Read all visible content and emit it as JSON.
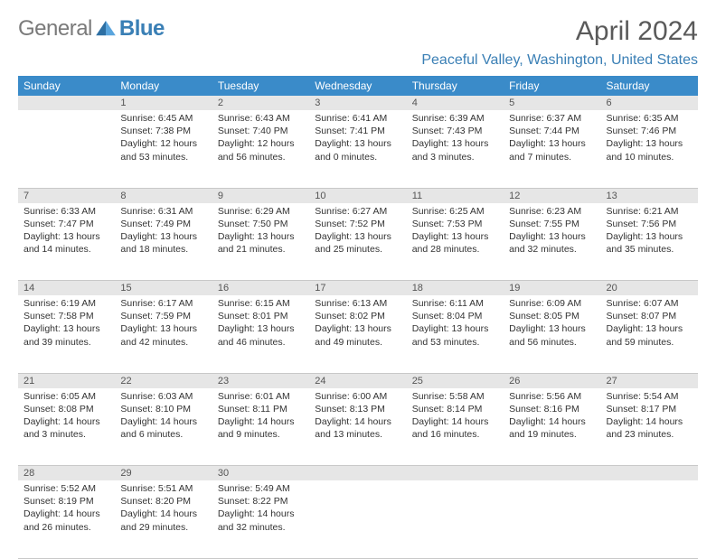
{
  "brand": {
    "text1": "General",
    "text2": "Blue"
  },
  "title": "April 2024",
  "location": "Peaceful Valley, Washington, United States",
  "header_bg": "#3a8bc9",
  "daynum_bg": "#e6e6e6",
  "accent_color": "#3a7fb5",
  "days": [
    "Sunday",
    "Monday",
    "Tuesday",
    "Wednesday",
    "Thursday",
    "Friday",
    "Saturday"
  ],
  "weeks": [
    [
      {
        "n": "",
        "sr": "",
        "ss": "",
        "d1": "",
        "d2": ""
      },
      {
        "n": "1",
        "sr": "Sunrise: 6:45 AM",
        "ss": "Sunset: 7:38 PM",
        "d1": "Daylight: 12 hours",
        "d2": "and 53 minutes."
      },
      {
        "n": "2",
        "sr": "Sunrise: 6:43 AM",
        "ss": "Sunset: 7:40 PM",
        "d1": "Daylight: 12 hours",
        "d2": "and 56 minutes."
      },
      {
        "n": "3",
        "sr": "Sunrise: 6:41 AM",
        "ss": "Sunset: 7:41 PM",
        "d1": "Daylight: 13 hours",
        "d2": "and 0 minutes."
      },
      {
        "n": "4",
        "sr": "Sunrise: 6:39 AM",
        "ss": "Sunset: 7:43 PM",
        "d1": "Daylight: 13 hours",
        "d2": "and 3 minutes."
      },
      {
        "n": "5",
        "sr": "Sunrise: 6:37 AM",
        "ss": "Sunset: 7:44 PM",
        "d1": "Daylight: 13 hours",
        "d2": "and 7 minutes."
      },
      {
        "n": "6",
        "sr": "Sunrise: 6:35 AM",
        "ss": "Sunset: 7:46 PM",
        "d1": "Daylight: 13 hours",
        "d2": "and 10 minutes."
      }
    ],
    [
      {
        "n": "7",
        "sr": "Sunrise: 6:33 AM",
        "ss": "Sunset: 7:47 PM",
        "d1": "Daylight: 13 hours",
        "d2": "and 14 minutes."
      },
      {
        "n": "8",
        "sr": "Sunrise: 6:31 AM",
        "ss": "Sunset: 7:49 PM",
        "d1": "Daylight: 13 hours",
        "d2": "and 18 minutes."
      },
      {
        "n": "9",
        "sr": "Sunrise: 6:29 AM",
        "ss": "Sunset: 7:50 PM",
        "d1": "Daylight: 13 hours",
        "d2": "and 21 minutes."
      },
      {
        "n": "10",
        "sr": "Sunrise: 6:27 AM",
        "ss": "Sunset: 7:52 PM",
        "d1": "Daylight: 13 hours",
        "d2": "and 25 minutes."
      },
      {
        "n": "11",
        "sr": "Sunrise: 6:25 AM",
        "ss": "Sunset: 7:53 PM",
        "d1": "Daylight: 13 hours",
        "d2": "and 28 minutes."
      },
      {
        "n": "12",
        "sr": "Sunrise: 6:23 AM",
        "ss": "Sunset: 7:55 PM",
        "d1": "Daylight: 13 hours",
        "d2": "and 32 minutes."
      },
      {
        "n": "13",
        "sr": "Sunrise: 6:21 AM",
        "ss": "Sunset: 7:56 PM",
        "d1": "Daylight: 13 hours",
        "d2": "and 35 minutes."
      }
    ],
    [
      {
        "n": "14",
        "sr": "Sunrise: 6:19 AM",
        "ss": "Sunset: 7:58 PM",
        "d1": "Daylight: 13 hours",
        "d2": "and 39 minutes."
      },
      {
        "n": "15",
        "sr": "Sunrise: 6:17 AM",
        "ss": "Sunset: 7:59 PM",
        "d1": "Daylight: 13 hours",
        "d2": "and 42 minutes."
      },
      {
        "n": "16",
        "sr": "Sunrise: 6:15 AM",
        "ss": "Sunset: 8:01 PM",
        "d1": "Daylight: 13 hours",
        "d2": "and 46 minutes."
      },
      {
        "n": "17",
        "sr": "Sunrise: 6:13 AM",
        "ss": "Sunset: 8:02 PM",
        "d1": "Daylight: 13 hours",
        "d2": "and 49 minutes."
      },
      {
        "n": "18",
        "sr": "Sunrise: 6:11 AM",
        "ss": "Sunset: 8:04 PM",
        "d1": "Daylight: 13 hours",
        "d2": "and 53 minutes."
      },
      {
        "n": "19",
        "sr": "Sunrise: 6:09 AM",
        "ss": "Sunset: 8:05 PM",
        "d1": "Daylight: 13 hours",
        "d2": "and 56 minutes."
      },
      {
        "n": "20",
        "sr": "Sunrise: 6:07 AM",
        "ss": "Sunset: 8:07 PM",
        "d1": "Daylight: 13 hours",
        "d2": "and 59 minutes."
      }
    ],
    [
      {
        "n": "21",
        "sr": "Sunrise: 6:05 AM",
        "ss": "Sunset: 8:08 PM",
        "d1": "Daylight: 14 hours",
        "d2": "and 3 minutes."
      },
      {
        "n": "22",
        "sr": "Sunrise: 6:03 AM",
        "ss": "Sunset: 8:10 PM",
        "d1": "Daylight: 14 hours",
        "d2": "and 6 minutes."
      },
      {
        "n": "23",
        "sr": "Sunrise: 6:01 AM",
        "ss": "Sunset: 8:11 PM",
        "d1": "Daylight: 14 hours",
        "d2": "and 9 minutes."
      },
      {
        "n": "24",
        "sr": "Sunrise: 6:00 AM",
        "ss": "Sunset: 8:13 PM",
        "d1": "Daylight: 14 hours",
        "d2": "and 13 minutes."
      },
      {
        "n": "25",
        "sr": "Sunrise: 5:58 AM",
        "ss": "Sunset: 8:14 PM",
        "d1": "Daylight: 14 hours",
        "d2": "and 16 minutes."
      },
      {
        "n": "26",
        "sr": "Sunrise: 5:56 AM",
        "ss": "Sunset: 8:16 PM",
        "d1": "Daylight: 14 hours",
        "d2": "and 19 minutes."
      },
      {
        "n": "27",
        "sr": "Sunrise: 5:54 AM",
        "ss": "Sunset: 8:17 PM",
        "d1": "Daylight: 14 hours",
        "d2": "and 23 minutes."
      }
    ],
    [
      {
        "n": "28",
        "sr": "Sunrise: 5:52 AM",
        "ss": "Sunset: 8:19 PM",
        "d1": "Daylight: 14 hours",
        "d2": "and 26 minutes."
      },
      {
        "n": "29",
        "sr": "Sunrise: 5:51 AM",
        "ss": "Sunset: 8:20 PM",
        "d1": "Daylight: 14 hours",
        "d2": "and 29 minutes."
      },
      {
        "n": "30",
        "sr": "Sunrise: 5:49 AM",
        "ss": "Sunset: 8:22 PM",
        "d1": "Daylight: 14 hours",
        "d2": "and 32 minutes."
      },
      {
        "n": "",
        "sr": "",
        "ss": "",
        "d1": "",
        "d2": ""
      },
      {
        "n": "",
        "sr": "",
        "ss": "",
        "d1": "",
        "d2": ""
      },
      {
        "n": "",
        "sr": "",
        "ss": "",
        "d1": "",
        "d2": ""
      },
      {
        "n": "",
        "sr": "",
        "ss": "",
        "d1": "",
        "d2": ""
      }
    ]
  ]
}
